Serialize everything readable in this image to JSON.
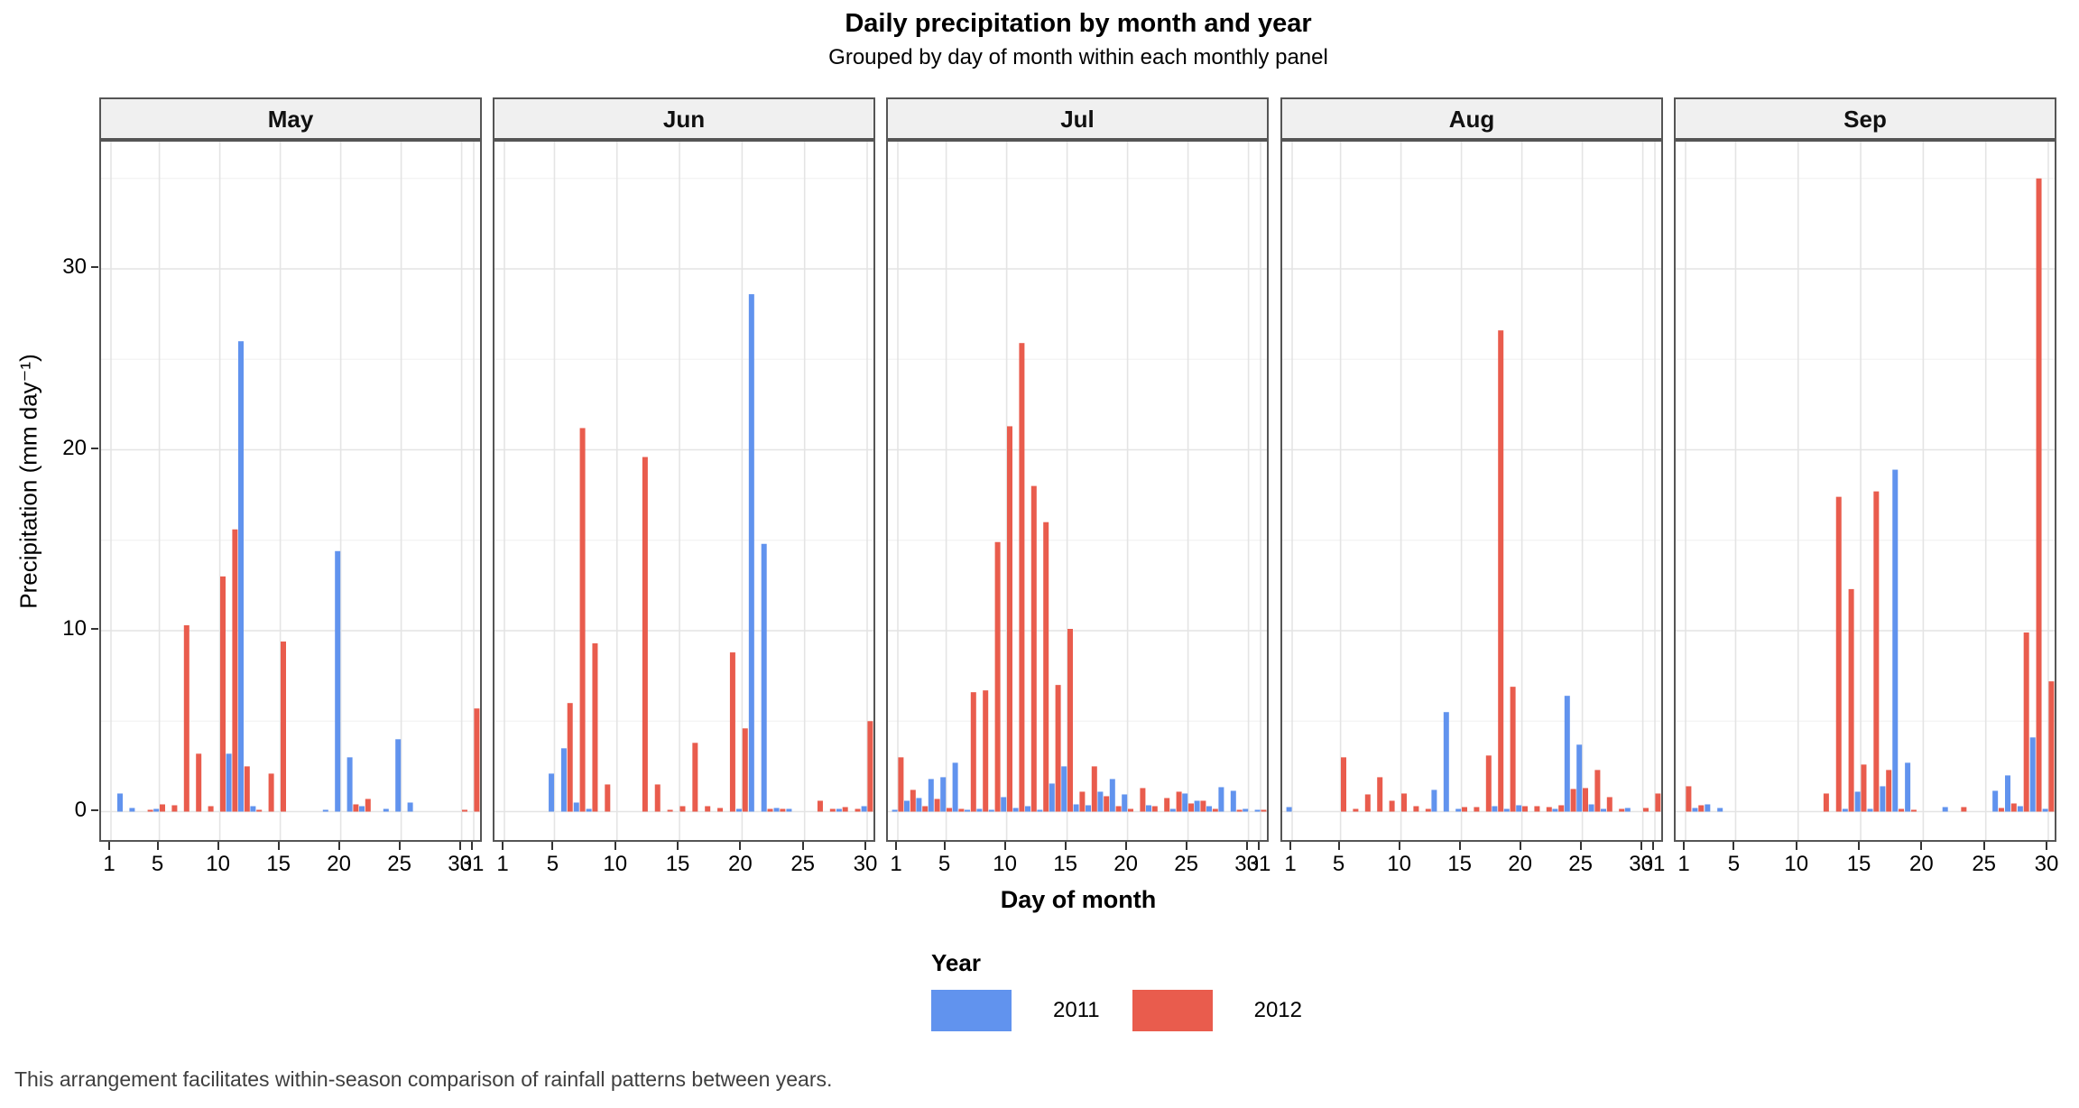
{
  "title": "Daily precipitation by month and year",
  "subtitle": "Grouped by day of month within each monthly panel",
  "caption": "This arrangement facilitates within-season comparison of rainfall patterns between years.",
  "axes": {
    "x_title": "Day of month",
    "y_title": "Precipitation (mm day⁻¹)"
  },
  "legend": {
    "title": "Year",
    "entries": [
      {
        "label": "2011",
        "color": "#6193EE"
      },
      {
        "label": "2012",
        "color": "#E95C4D"
      }
    ]
  },
  "colors": {
    "year_2011": "#6193EE",
    "year_2012": "#E95C4D",
    "grid_major": "#E4E4E4",
    "grid_minor": "#F2F2F2",
    "panel_border": "#555555",
    "strip_bg": "#F0F0F0",
    "caption_text": "#3F3F3F"
  },
  "chart_data": {
    "type": "bar",
    "title": "Daily precipitation by month and year",
    "subtitle": "Grouped by day of month within each monthly panel",
    "xlabel": "Day of month",
    "ylabel": "Precipitation (mm day⁻¹)",
    "ylim": [
      0,
      37
    ],
    "yticks": [
      0,
      10,
      20,
      30
    ],
    "yticks_minor": [
      5,
      15,
      25,
      35
    ],
    "grid": true,
    "legend_position": "bottom",
    "series_names": [
      "2011",
      "2012"
    ],
    "panels": [
      {
        "month": "May",
        "days": 31,
        "xticks": [
          1,
          5,
          10,
          15,
          20,
          25,
          30,
          31
        ],
        "series": [
          {
            "name": "2011",
            "values": {
              "2": 1.0,
              "3": 0.2,
              "5": 0.15,
              "11": 3.2,
              "12": 26.0,
              "13": 0.3,
              "19": 0.1,
              "20": 14.4,
              "21": 3.0,
              "22": 0.3,
              "24": 0.15,
              "25": 4.0,
              "26": 0.5
            }
          },
          {
            "name": "2012",
            "values": {
              "4": 0.1,
              "5": 0.4,
              "6": 0.35,
              "7": 10.3,
              "8": 3.2,
              "9": 0.3,
              "10": 13.0,
              "11": 15.6,
              "12": 2.5,
              "13": 0.1,
              "14": 2.1,
              "15": 9.4,
              "21": 0.4,
              "22": 0.7,
              "30": 0.1,
              "31": 5.7
            }
          }
        ]
      },
      {
        "month": "Jun",
        "days": 30,
        "xticks": [
          1,
          5,
          10,
          15,
          20,
          25,
          30
        ],
        "series": [
          {
            "name": "2011",
            "values": {
              "5": 2.1,
              "6": 3.5,
              "7": 0.5,
              "8": 0.15,
              "20": 0.15,
              "21": 28.6,
              "22": 14.8,
              "23": 0.2,
              "24": 0.15,
              "28": 0.15,
              "30": 0.3
            }
          },
          {
            "name": "2012",
            "values": {
              "6": 6.0,
              "7": 21.2,
              "8": 9.3,
              "9": 1.5,
              "12": 19.6,
              "13": 1.5,
              "14": 0.1,
              "15": 0.3,
              "16": 3.8,
              "17": 0.3,
              "18": 0.2,
              "19": 8.8,
              "20": 4.6,
              "22": 0.15,
              "23": 0.15,
              "26": 0.6,
              "27": 0.15,
              "28": 0.25,
              "29": 0.15,
              "30": 5.0
            }
          }
        ]
      },
      {
        "month": "Jul",
        "days": 31,
        "xticks": [
          1,
          5,
          10,
          15,
          20,
          25,
          30,
          31
        ],
        "series": [
          {
            "name": "2011",
            "values": {
              "1": 0.1,
              "2": 0.6,
              "3": 0.75,
              "4": 1.8,
              "5": 1.9,
              "6": 2.7,
              "7": 0.1,
              "8": 0.15,
              "9": 0.1,
              "10": 0.8,
              "11": 0.2,
              "12": 0.3,
              "13": 0.1,
              "14": 1.55,
              "15": 2.5,
              "16": 0.4,
              "17": 0.35,
              "18": 1.1,
              "19": 1.8,
              "20": 0.95,
              "22": 0.35,
              "24": 0.15,
              "25": 1.0,
              "26": 0.6,
              "27": 0.3,
              "28": 1.35,
              "29": 1.15,
              "30": 0.15,
              "31": 0.1
            }
          },
          {
            "name": "2012",
            "values": {
              "1": 3.0,
              "2": 1.2,
              "3": 0.3,
              "4": 0.7,
              "5": 0.2,
              "6": 0.15,
              "7": 6.6,
              "8": 6.7,
              "9": 14.9,
              "10": 21.3,
              "11": 25.9,
              "12": 18.0,
              "13": 16.0,
              "14": 7.0,
              "15": 10.1,
              "16": 1.1,
              "17": 2.5,
              "18": 0.85,
              "19": 0.3,
              "20": 0.15,
              "21": 1.3,
              "22": 0.3,
              "23": 0.75,
              "24": 1.1,
              "25": 0.45,
              "26": 0.6,
              "27": 0.15,
              "29": 0.1,
              "31": 0.1
            }
          }
        ]
      },
      {
        "month": "Aug",
        "days": 31,
        "xticks": [
          1,
          5,
          10,
          15,
          20,
          25,
          30,
          31
        ],
        "series": [
          {
            "name": "2011",
            "values": {
              "1": 0.25,
              "13": 1.2,
              "14": 5.5,
              "15": 0.15,
              "18": 0.3,
              "19": 0.15,
              "20": 0.35,
              "23": 0.15,
              "24": 6.4,
              "25": 3.7,
              "26": 0.4,
              "27": 0.15,
              "29": 0.2
            }
          },
          {
            "name": "2012",
            "values": {
              "5": 3.0,
              "6": 0.15,
              "7": 0.95,
              "8": 1.9,
              "9": 0.6,
              "10": 1.0,
              "11": 0.3,
              "12": 0.15,
              "15": 0.25,
              "16": 0.25,
              "17": 3.1,
              "18": 26.6,
              "19": 6.9,
              "20": 0.3,
              "21": 0.3,
              "22": 0.25,
              "23": 0.35,
              "24": 1.25,
              "25": 1.3,
              "26": 2.3,
              "27": 0.8,
              "28": 0.15,
              "30": 0.2,
              "31": 1.0
            }
          }
        ]
      },
      {
        "month": "Sep",
        "days": 30,
        "xticks": [
          1,
          5,
          10,
          15,
          20,
          25,
          30
        ],
        "series": [
          {
            "name": "2011",
            "values": {
              "2": 0.2,
              "3": 0.4,
              "4": 0.2,
              "14": 0.15,
              "15": 1.1,
              "16": 0.15,
              "17": 1.4,
              "18": 18.9,
              "19": 2.7,
              "22": 0.25,
              "26": 1.15,
              "27": 2.0,
              "28": 0.3,
              "29": 4.1,
              "30": 0.15
            }
          },
          {
            "name": "2012",
            "values": {
              "1": 1.4,
              "2": 0.35,
              "12": 1.0,
              "13": 17.4,
              "14": 12.3,
              "15": 2.6,
              "16": 17.7,
              "17": 2.3,
              "18": 0.15,
              "19": 0.1,
              "23": 0.25,
              "26": 0.2,
              "27": 0.45,
              "28": 9.9,
              "29": 35.0,
              "30": 7.2
            }
          }
        ]
      }
    ]
  }
}
